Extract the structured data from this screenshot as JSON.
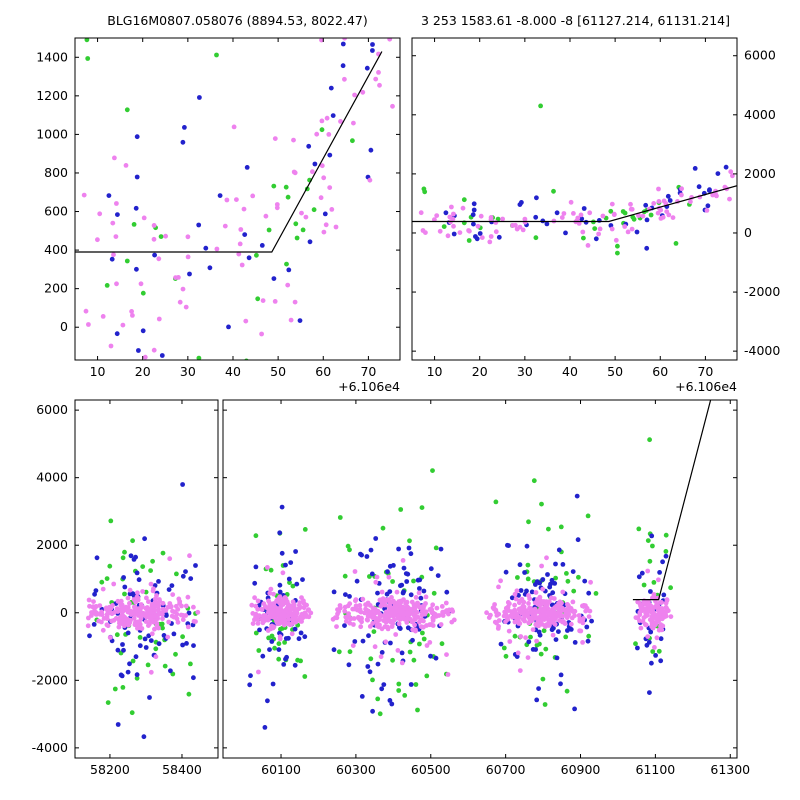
{
  "header": {
    "title_left": "BLG16M0807.058076 (8894.53, 8022.47)",
    "title_right": "3 253 1583.61 -8.000 -8 [61127.214, 61131.214]"
  },
  "colors": {
    "pink": "#ee82ee",
    "blue": "#2222cc",
    "green": "#32cd32",
    "line": "#000000",
    "axis": "#000000",
    "background": "#ffffff"
  },
  "marker_radius": 2.4,
  "seed": 7,
  "chart_data": [
    {
      "id": "recent-zoom",
      "type": "scatter",
      "position": "top-left",
      "xlim": [
        5,
        77
      ],
      "ylim": [
        -170,
        1500
      ],
      "xticks": [
        10,
        20,
        30,
        40,
        50,
        60,
        70
      ],
      "xtick_labels": [
        "10",
        "20",
        "30",
        "40",
        "50",
        "60",
        "70"
      ],
      "yticks": [
        0,
        200,
        400,
        600,
        800,
        1000,
        1200,
        1400
      ],
      "ytick_labels": [
        "0",
        "200",
        "400",
        "600",
        "800",
        "1000",
        "1200",
        "1400"
      ],
      "ytick_side": "left",
      "x_offset_label": "+6.106e4",
      "model_line": [
        [
          5,
          390
        ],
        [
          48.6,
          390
        ],
        [
          73,
          1430
        ]
      ],
      "points_ref": "recent",
      "series_names": [
        "green",
        "blue",
        "pink"
      ]
    },
    {
      "id": "recent-wide",
      "type": "scatter",
      "position": "top-right",
      "xlim": [
        5,
        77
      ],
      "ylim": [
        -4300,
        6600
      ],
      "xticks": [
        10,
        20,
        30,
        40,
        50,
        60,
        70
      ],
      "xtick_labels": [
        "10",
        "20",
        "30",
        "40",
        "50",
        "60",
        "70"
      ],
      "yticks": [
        -4000,
        -2000,
        0,
        2000,
        4000,
        6000
      ],
      "ytick_labels": [
        "-4000",
        "-2000",
        "0",
        "2000",
        "4000",
        "6000"
      ],
      "ytick_side": "right",
      "x_offset_label": "+6.106e4",
      "model_line": [
        [
          5,
          390
        ],
        [
          48.6,
          390
        ],
        [
          77,
          1600
        ]
      ],
      "points_ref": "recent",
      "series_names": [
        "green",
        "blue",
        "pink"
      ]
    },
    {
      "id": "long-term",
      "type": "scatter",
      "position": "bottom",
      "broken_axis": true,
      "segments": [
        {
          "xlim": [
            58103,
            58500
          ],
          "xticks": [
            58200,
            58400
          ],
          "xtick_labels": [
            "58200",
            "58400"
          ]
        },
        {
          "xlim": [
            59945,
            61318
          ],
          "xticks": [
            60100,
            60300,
            60500,
            60700,
            60900,
            61100,
            61300
          ],
          "xtick_labels": [
            "60100",
            "60300",
            "60500",
            "60700",
            "60900",
            "61100",
            "61300"
          ]
        }
      ],
      "ylim": [
        -4300,
        6300
      ],
      "yticks": [
        -4000,
        -2000,
        0,
        2000,
        4000,
        6000
      ],
      "ytick_labels": [
        "-4000",
        "-2000",
        "0",
        "2000",
        "4000",
        "6000"
      ],
      "ytick_side": "left",
      "model_line": [
        [
          61040,
          390
        ],
        [
          61108.6,
          390
        ],
        [
          61250,
          6400
        ]
      ],
      "points_ref": "seasons",
      "series_names": [
        "green",
        "blue",
        "pink"
      ]
    }
  ],
  "datasets": {
    "recent": {
      "x_range": [
        7,
        76
      ],
      "model": [
        [
          5,
          390
        ],
        [
          48.6,
          390
        ],
        [
          77,
          1600
        ]
      ],
      "series": [
        {
          "name": "green",
          "n": 32,
          "mix": [
            {
              "p": 1.0,
              "s": 430
            }
          ]
        },
        {
          "name": "blue",
          "n": 48,
          "mix": [
            {
              "p": 1.0,
              "s": 380
            }
          ]
        },
        {
          "name": "pink",
          "n": 92,
          "mix": [
            {
              "p": 1.0,
              "s": 360
            }
          ]
        }
      ],
      "outliers": [
        {
          "series": "green",
          "x": 33.5,
          "y": 4300
        },
        {
          "series": "green",
          "x": 50.5,
          "y": -680
        },
        {
          "series": "pink",
          "x": 44.0,
          "y": -420
        },
        {
          "series": "blue",
          "x": 57.0,
          "y": -520
        }
      ]
    },
    "seasons": {
      "clusters": [
        {
          "x_range": [
            58120,
            58460
          ],
          "counts": {
            "pink": 260,
            "blue": 85,
            "green": 50
          }
        },
        {
          "x_range": [
            60010,
            60190
          ],
          "counts": {
            "pink": 200,
            "blue": 60,
            "green": 35
          }
        },
        {
          "x_range": [
            60230,
            60580
          ],
          "counts": {
            "pink": 290,
            "blue": 95,
            "green": 55
          }
        },
        {
          "x_range": [
            60640,
            60950
          ],
          "counts": {
            "pink": 260,
            "blue": 85,
            "green": 50
          }
        },
        {
          "x_range": [
            61040,
            61145
          ],
          "counts": {
            "pink": 120,
            "blue": 30,
            "green": 18
          }
        }
      ],
      "sigmas": {
        "pink": [
          {
            "p": 0.9,
            "s": 230
          },
          {
            "p": 0.1,
            "s": 950
          }
        ],
        "blue": [
          {
            "p": 0.85,
            "s": 850
          },
          {
            "p": 0.15,
            "s": 1800
          }
        ],
        "green": [
          {
            "p": 0.86,
            "s": 1500
          },
          {
            "p": 0.14,
            "s": 2500
          }
        ]
      }
    }
  }
}
